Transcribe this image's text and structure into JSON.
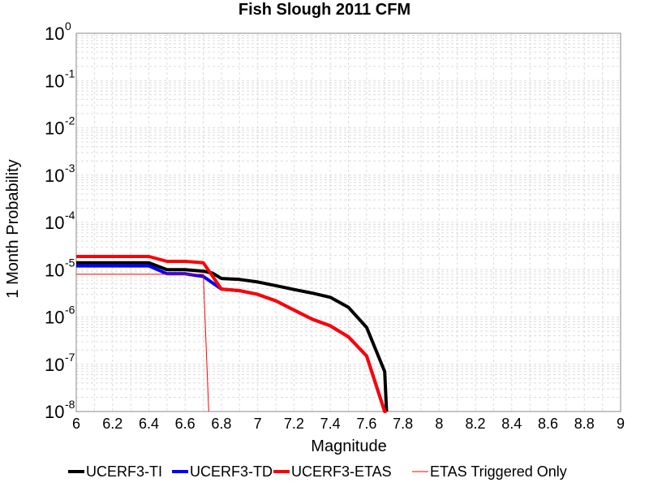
{
  "chart_data": {
    "type": "line",
    "title": "Fish Slough 2011 CFM",
    "xlabel": "Magnitude",
    "ylabel": "1 Month Probability",
    "xlim": [
      6,
      9
    ],
    "ylim": [
      1e-08,
      1
    ],
    "y_scale": "log",
    "grid": true,
    "legend_position": "bottom",
    "x_ticks": [
      "6",
      "6.2",
      "6.4",
      "6.6",
      "6.8",
      "7",
      "7.2",
      "7.4",
      "7.6",
      "7.8",
      "8",
      "8.2",
      "8.4",
      "8.6",
      "8.8",
      "9"
    ],
    "y_ticks": [
      {
        "base": "10",
        "exp": "0",
        "value": 1
      },
      {
        "base": "10",
        "exp": "-1",
        "value": 0.1
      },
      {
        "base": "10",
        "exp": "-2",
        "value": 0.01
      },
      {
        "base": "10",
        "exp": "-3",
        "value": 0.001
      },
      {
        "base": "10",
        "exp": "-4",
        "value": 0.0001
      },
      {
        "base": "10",
        "exp": "-5",
        "value": 1e-05
      },
      {
        "base": "10",
        "exp": "-6",
        "value": 1e-06
      },
      {
        "base": "10",
        "exp": "-7",
        "value": 1e-07
      },
      {
        "base": "10",
        "exp": "-8",
        "value": 1e-08
      }
    ],
    "series": [
      {
        "name": "UCERF3-TI",
        "color": "#000000",
        "width": "thick",
        "x": [
          6.0,
          6.1,
          6.2,
          6.3,
          6.4,
          6.5,
          6.6,
          6.7,
          6.75,
          6.8,
          6.9,
          7.0,
          7.1,
          7.2,
          7.3,
          7.4,
          7.5,
          7.6,
          7.7,
          7.71
        ],
        "y": [
          1.4e-05,
          1.4e-05,
          1.4e-05,
          1.4e-05,
          1.4e-05,
          1e-05,
          1e-05,
          9.3e-06,
          8.5e-06,
          6.5e-06,
          6.2e-06,
          5.5e-06,
          4.6e-06,
          3.8e-06,
          3.2e-06,
          2.6e-06,
          1.6e-06,
          6e-07,
          7e-08,
          5e-09
        ]
      },
      {
        "name": "UCERF3-TD",
        "color": "#0000ff",
        "width": "thick",
        "x": [
          6.0,
          6.1,
          6.2,
          6.3,
          6.4,
          6.5,
          6.6,
          6.7,
          6.8,
          6.9,
          7.0,
          7.1,
          7.2,
          7.3,
          7.4,
          7.5,
          7.6,
          7.7,
          7.71
        ],
        "y": [
          1.2e-05,
          1.2e-05,
          1.2e-05,
          1.2e-05,
          1.2e-05,
          8.2e-06,
          8.2e-06,
          7.2e-06,
          3.9e-06,
          3.6e-06,
          3e-06,
          2.2e-06,
          1.4e-06,
          9e-07,
          6.5e-07,
          3.8e-07,
          1.5e-07,
          1e-08,
          5e-09
        ]
      },
      {
        "name": "UCERF3-ETAS",
        "color": "#ff0000",
        "width": "thick",
        "x": [
          6.0,
          6.1,
          6.2,
          6.3,
          6.4,
          6.5,
          6.6,
          6.7,
          6.8,
          6.9,
          7.0,
          7.1,
          7.2,
          7.3,
          7.4,
          7.5,
          7.6,
          7.7,
          7.71
        ],
        "y": [
          1.9e-05,
          1.9e-05,
          1.9e-05,
          1.9e-05,
          1.9e-05,
          1.5e-05,
          1.5e-05,
          1.4e-05,
          3.9e-06,
          3.6e-06,
          3e-06,
          2.2e-06,
          1.4e-06,
          9e-07,
          6.5e-07,
          3.8e-07,
          1.5e-07,
          1e-08,
          5e-09
        ]
      },
      {
        "name": "ETAS Triggered Only",
        "color": "#ff0000",
        "width": "thin",
        "x": [
          6.0,
          6.1,
          6.2,
          6.3,
          6.4,
          6.5,
          6.6,
          6.7,
          6.73
        ],
        "y": [
          8e-06,
          8e-06,
          8e-06,
          8e-06,
          8e-06,
          8e-06,
          8e-06,
          8e-06,
          5e-09
        ]
      }
    ]
  }
}
